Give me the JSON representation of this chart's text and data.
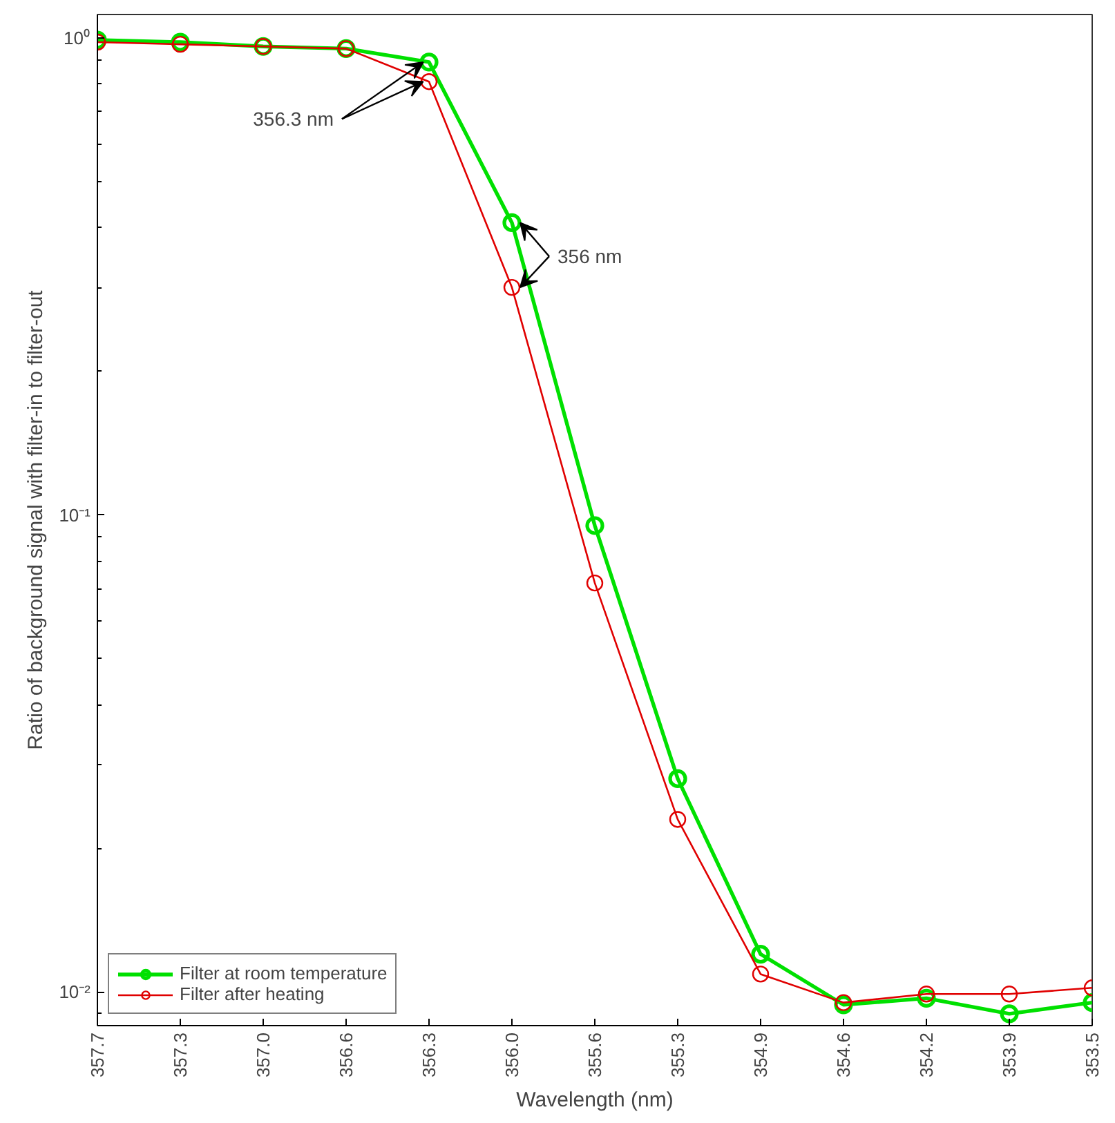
{
  "chart_data": {
    "type": "line",
    "xlabel": "Wavelength (nm)",
    "ylabel": "Ratio of background signal with filter-in to filter-out",
    "categories": [
      "357.7",
      "357.3",
      "357.0",
      "356.6",
      "356.3",
      "356.0",
      "355.6",
      "355.3",
      "354.9",
      "354.6",
      "354.2",
      "353.9",
      "353.5"
    ],
    "series": [
      {
        "name": "Filter at room temperature",
        "color": "#00e000",
        "values": [
          0.99,
          0.98,
          0.96,
          0.95,
          0.89,
          0.41,
          0.095,
          0.028,
          0.012,
          0.0094,
          0.0097,
          0.009,
          0.0095
        ]
      },
      {
        "name": "Filter after heating",
        "color": "#e00000",
        "values": [
          0.98,
          0.97,
          0.96,
          0.95,
          0.81,
          0.3,
          0.072,
          0.023,
          0.0109,
          0.0095,
          0.0099,
          0.0099,
          0.0102
        ]
      }
    ],
    "log": "y",
    "ylim": [
      0.0085,
      1.12
    ],
    "yticks": [
      {
        "value": 0.01,
        "label": "10⁻²"
      },
      {
        "value": 0.1,
        "label": "10⁻¹"
      },
      {
        "value": 1,
        "label": "10⁰"
      }
    ],
    "marker": "circle",
    "line_style": "solid",
    "grid": false,
    "legend": "bottom left",
    "annotations": [
      {
        "text": "356.3 nm",
        "x": "356.3",
        "y": 0.89
      },
      {
        "text": "356 nm",
        "x": "356.0",
        "y": 0.41
      }
    ]
  }
}
